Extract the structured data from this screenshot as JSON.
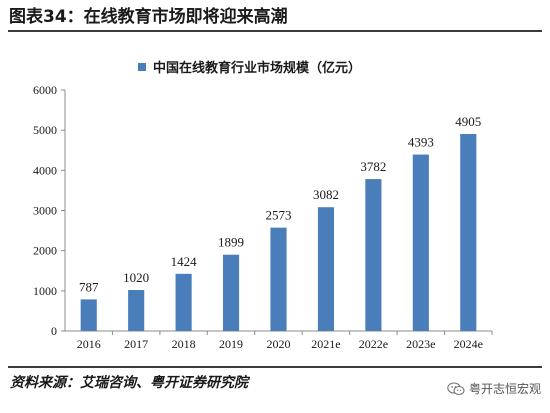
{
  "figure": {
    "title": "图表34：在线教育市场即将迎来高潮",
    "source": "资料来源：艾瑞咨询、粤开证券研究院",
    "brand": "粤开志恒宏观",
    "brand_icon": "wechat-icon"
  },
  "chart_data": {
    "type": "bar",
    "title": "",
    "xlabel": "",
    "ylabel": "",
    "legend_position": "top-center",
    "grid": false,
    "bar_color": "#4a7ebb",
    "ylim": [
      0,
      6000
    ],
    "yticks": [
      0,
      1000,
      2000,
      3000,
      4000,
      5000,
      6000
    ],
    "categories": [
      "2016",
      "2017",
      "2018",
      "2019",
      "2020",
      "2021e",
      "2022e",
      "2023e",
      "2024e"
    ],
    "series": [
      {
        "name": "中国在线教育行业市场规模（亿元）",
        "values": [
          787,
          1020,
          1424,
          1899,
          2573,
          3082,
          3782,
          4393,
          4905
        ]
      }
    ]
  }
}
